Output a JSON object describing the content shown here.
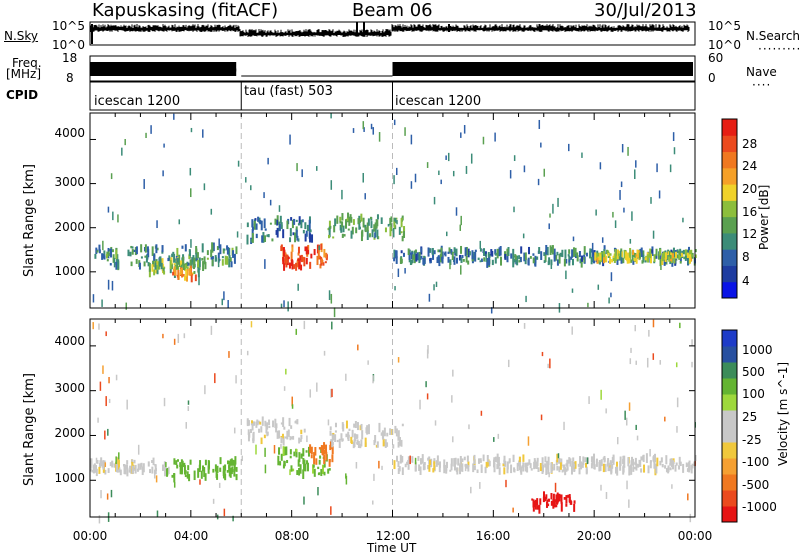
{
  "header": {
    "station": "Kapuskasing (fitACF)",
    "beam": "Beam 06",
    "date": "30/Jul/2013"
  },
  "summary_panels": {
    "nsky_label": "N.Sky",
    "nsky_ticks": [
      "10^5",
      "10^0"
    ],
    "nsearch_label": "N.Search",
    "nsearch_ticks": [
      "10^5",
      "10^0"
    ],
    "freq_label": "Freq.",
    "freq_unit": "[MHz]",
    "freq_ticks": [
      "18",
      "8"
    ],
    "nave_label": "Nave",
    "nave_ticks": [
      "60",
      "0"
    ],
    "cpid_label": "CPID",
    "cpid_segments": [
      {
        "name": "icescan 1200",
        "start_hour": 0,
        "end_hour": 6
      },
      {
        "name": "tau (fast) 503",
        "start_hour": 6,
        "end_hour": 12
      },
      {
        "name": "icescan 1200",
        "start_hour": 12,
        "end_hour": 24
      }
    ]
  },
  "axes": {
    "x_label": "Time UT",
    "x_ticks": [
      "00:00",
      "04:00",
      "08:00",
      "12:00",
      "16:00",
      "20:00",
      "00:00"
    ],
    "y_label": "Slant Range [km]",
    "y_ticks": [
      "1000",
      "2000",
      "3000",
      "4000"
    ]
  },
  "power_colorbar": {
    "label": "Power [dB]",
    "ticks": [
      "4",
      "8",
      "12",
      "16",
      "20",
      "24",
      "28"
    ],
    "colors": [
      "#0a14e6",
      "#1e3ca0",
      "#2e5fa8",
      "#3c8c78",
      "#5aa050",
      "#8cbe3c",
      "#f0d22a",
      "#f5a028",
      "#f07820",
      "#eb4a1e",
      "#e61e14"
    ]
  },
  "velocity_colorbar": {
    "label": "Velocity [m s^-1]",
    "ticks": [
      "1000",
      "500",
      "100",
      "25",
      "-25",
      "-100",
      "-500",
      "-1000"
    ],
    "colors": [
      "#1e3cc8",
      "#2850a0",
      "#3c8c5a",
      "#64b432",
      "#9ed83c",
      "#c8c8c8",
      "#c8c8c8",
      "#f0c83c",
      "#f5a032",
      "#f07820",
      "#eb4a1e",
      "#e61414"
    ]
  },
  "chart_data": {
    "type": "heatmap",
    "title": "Kapuskasing (fitACF)  Beam 06  30/Jul/2013",
    "xlabel": "Time UT",
    "ylabel": "Slant Range [km]",
    "xlim": [
      0,
      24
    ],
    "ylim": [
      180,
      4600
    ],
    "panels": [
      {
        "name": "Power",
        "unit": "dB",
        "colorbar_range": [
          0,
          30
        ],
        "echo_regions": [
          {
            "t_start": 0.0,
            "t_end": 5.8,
            "r_center": 1350,
            "r_width": 450,
            "value": 10
          },
          {
            "t_start": 2.3,
            "t_end": 4.3,
            "r_center": 1100,
            "r_width": 300,
            "value": 14
          },
          {
            "t_start": 3.2,
            "t_end": 4.2,
            "r_center": 950,
            "r_width": 200,
            "value": 22
          },
          {
            "t_start": 6.2,
            "t_end": 8.8,
            "r_center": 1950,
            "r_width": 500,
            "value": 8
          },
          {
            "t_start": 7.5,
            "t_end": 9.4,
            "r_center": 1350,
            "r_width": 500,
            "value": 24
          },
          {
            "t_start": 7.6,
            "t_end": 8.4,
            "r_center": 1200,
            "r_width": 250,
            "value": 28
          },
          {
            "t_start": 9.4,
            "t_end": 12.5,
            "r_center": 2000,
            "r_width": 500,
            "value": 12
          },
          {
            "t_start": 12.0,
            "t_end": 24.0,
            "r_center": 1350,
            "r_width": 300,
            "value": 9
          },
          {
            "t_start": 20.0,
            "t_end": 24.0,
            "r_center": 1350,
            "r_width": 200,
            "value": 16
          }
        ]
      },
      {
        "name": "Velocity",
        "unit": "m s^-1",
        "colorbar_range": [
          -1000,
          1000
        ],
        "echo_regions": [
          {
            "t_start": 0.0,
            "t_end": 3.0,
            "r_center": 1300,
            "r_width": 250,
            "value": 0
          },
          {
            "t_start": 3.0,
            "t_end": 5.8,
            "r_center": 1250,
            "r_width": 400,
            "value": 150
          },
          {
            "t_start": 6.2,
            "t_end": 8.5,
            "r_center": 2100,
            "r_width": 450,
            "value": 0
          },
          {
            "t_start": 7.4,
            "t_end": 9.5,
            "r_center": 1400,
            "r_width": 550,
            "value": 120
          },
          {
            "t_start": 8.6,
            "t_end": 9.6,
            "r_center": 1550,
            "r_width": 500,
            "value": -200
          },
          {
            "t_start": 9.5,
            "t_end": 12.5,
            "r_center": 2000,
            "r_width": 500,
            "value": 0
          },
          {
            "t_start": 12.0,
            "t_end": 24.0,
            "r_center": 1350,
            "r_width": 300,
            "value": 0
          },
          {
            "t_start": 17.5,
            "t_end": 19.2,
            "r_center": 500,
            "r_width": 300,
            "value": -600
          }
        ]
      }
    ]
  }
}
